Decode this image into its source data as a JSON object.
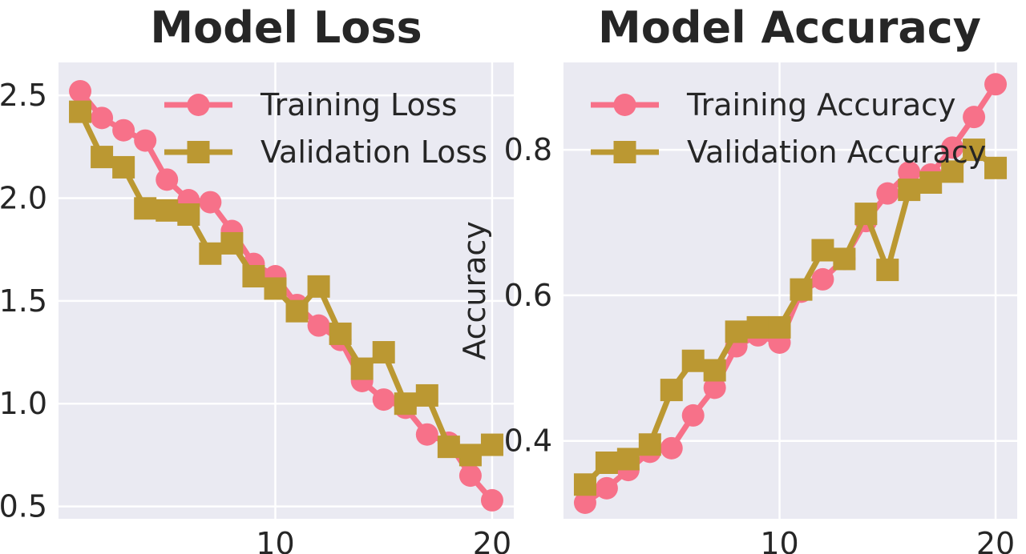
{
  "colors": {
    "training": "#f77189",
    "validation": "#bb9832",
    "plot_bg": "#eaeaf2",
    "grid": "#ffffff",
    "text": "#262626"
  },
  "chart_data": [
    {
      "type": "line",
      "title": "Model Loss",
      "xlabel": "",
      "ylabel": "",
      "x": [
        1,
        2,
        3,
        4,
        5,
        6,
        7,
        8,
        9,
        10,
        11,
        12,
        13,
        14,
        15,
        16,
        17,
        18,
        19,
        20
      ],
      "xlim": [
        0.0,
        21.0
      ],
      "ylim": [
        0.44,
        2.66
      ],
      "xticks": [
        10,
        20
      ],
      "yticks": [
        0.5,
        1.0,
        1.5,
        2.0,
        2.5
      ],
      "ytick_labels": [
        "0.5",
        "1.0",
        "1.5",
        "2.0",
        "2.5"
      ],
      "grid": true,
      "legend": "upper right",
      "series": [
        {
          "name": "Training Loss",
          "marker": "circle",
          "values": [
            2.52,
            2.39,
            2.33,
            2.28,
            2.09,
            1.99,
            1.98,
            1.84,
            1.68,
            1.62,
            1.48,
            1.38,
            1.31,
            1.11,
            1.02,
            0.98,
            0.85,
            0.81,
            0.65,
            0.53
          ]
        },
        {
          "name": "Validation Loss",
          "marker": "square",
          "values": [
            2.42,
            2.2,
            2.15,
            1.95,
            1.94,
            1.92,
            1.73,
            1.78,
            1.62,
            1.56,
            1.45,
            1.57,
            1.34,
            1.17,
            1.25,
            1.0,
            1.04,
            0.79,
            0.75,
            0.8
          ]
        }
      ]
    },
    {
      "type": "line",
      "title": "Model Accuracy",
      "xlabel": "",
      "ylabel": "Accuracy",
      "x": [
        1,
        2,
        3,
        4,
        5,
        6,
        7,
        8,
        9,
        10,
        11,
        12,
        13,
        14,
        15,
        16,
        17,
        18,
        19,
        20
      ],
      "xlim": [
        0.0,
        21.0
      ],
      "ylim": [
        0.293,
        0.92
      ],
      "xticks": [
        10,
        20
      ],
      "yticks": [
        0.4,
        0.6,
        0.8
      ],
      "ytick_labels": [
        "0.4",
        "0.6",
        "0.8"
      ],
      "grid": true,
      "legend": "upper left",
      "series": [
        {
          "name": "Training Accuracy",
          "marker": "circle",
          "values": [
            0.315,
            0.335,
            0.36,
            0.385,
            0.39,
            0.435,
            0.473,
            0.53,
            0.545,
            0.535,
            0.605,
            0.622,
            0.65,
            0.702,
            0.74,
            0.769,
            0.766,
            0.803,
            0.845,
            0.89
          ]
        },
        {
          "name": "Validation Accuracy",
          "marker": "square",
          "values": [
            0.34,
            0.37,
            0.375,
            0.395,
            0.47,
            0.51,
            0.497,
            0.55,
            0.556,
            0.556,
            0.608,
            0.662,
            0.65,
            0.712,
            0.635,
            0.745,
            0.755,
            0.77,
            0.8,
            0.775
          ]
        }
      ]
    }
  ]
}
